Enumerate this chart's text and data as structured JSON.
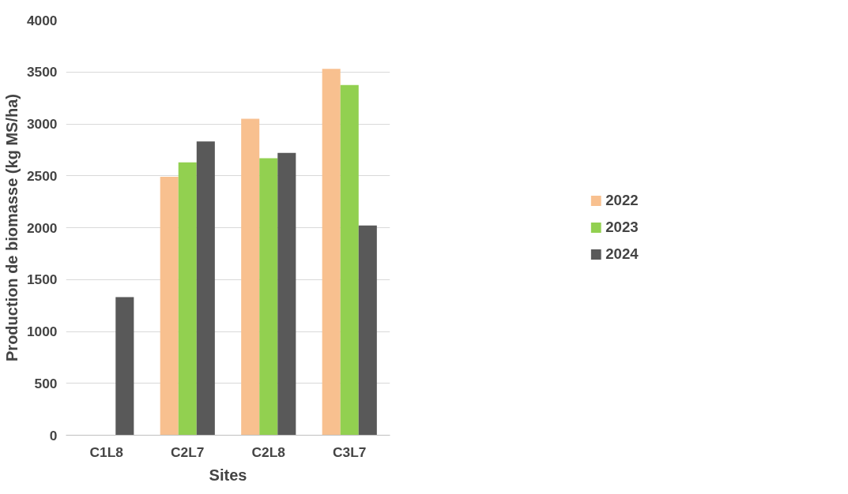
{
  "chart_data": {
    "type": "bar",
    "xlabel": "Sites",
    "ylabel": "Production de biomasse (kg MS/ha)",
    "categories": [
      "C1L8",
      "C2L7",
      "C2L8",
      "C3L7"
    ],
    "series": [
      {
        "name": "2022",
        "color": "#f8c08f",
        "values": [
          null,
          2490,
          3050,
          3530
        ]
      },
      {
        "name": "2023",
        "color": "#92d050",
        "values": [
          null,
          2630,
          2670,
          3375
        ]
      },
      {
        "name": "2024",
        "color": "#595959",
        "values": [
          1330,
          2830,
          2720,
          2020
        ]
      }
    ],
    "ylim": [
      0,
      4000
    ],
    "yticks": [
      0,
      500,
      1000,
      1500,
      2000,
      2500,
      3000,
      3500,
      4000
    ],
    "grid": "y",
    "legend": "right"
  }
}
